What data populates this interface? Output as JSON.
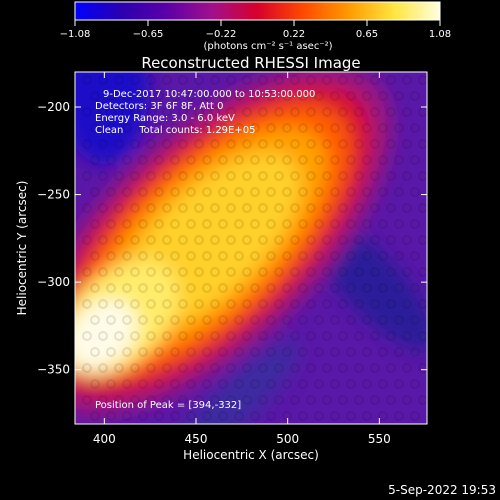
{
  "colorbar": {
    "ticks": [
      "−1.08",
      "−0.65",
      "−0.22",
      "0.22",
      "0.65",
      "1.08"
    ],
    "units_label": "(photons cm⁻² s⁻¹ asec⁻²)",
    "range": [
      -1.08,
      1.08
    ],
    "colors": [
      "#0000ff",
      "#2a00b0",
      "#5a00a8",
      "#a0108c",
      "#d8002c",
      "#ff4a00",
      "#ff9a00",
      "#ffe640",
      "#ffffe0"
    ]
  },
  "chart_data": {
    "type": "heatmap",
    "title": "Reconstructed RHESSI Image",
    "xlabel": "Heliocentric X (arcsec)",
    "ylabel": "Heliocentric Y (arcsec)",
    "xlim": [
      384,
      576
    ],
    "ylim": [
      -381,
      -180
    ],
    "x_ticks": [
      {
        "value": 400,
        "label": "400"
      },
      {
        "value": 450,
        "label": "450"
      },
      {
        "value": 500,
        "label": "500"
      },
      {
        "value": 550,
        "label": "550"
      }
    ],
    "y_ticks": [
      {
        "value": -200,
        "label": "−200"
      },
      {
        "value": -250,
        "label": "−250"
      },
      {
        "value": -300,
        "label": "−300"
      },
      {
        "value": -350,
        "label": "−350"
      }
    ],
    "annotations": [
      "9-Dec-2017 10:47:00.000 to 10:53:00.000",
      "Detectors: 3F 6F 8F, Att 0",
      "Energy Range: 3.0 - 6.0 keV",
      "Clean     Total counts: 1.29E+05"
    ],
    "peak_label": "Position of Peak = [394,-332]",
    "peak": [
      394,
      -332
    ],
    "ridge": [
      [
        396,
        -338
      ],
      [
        440,
        -292
      ],
      [
        490,
        -243
      ],
      [
        530,
        -205
      ]
    ]
  },
  "footer": {
    "timestamp": "5-Sep-2022 19:53"
  }
}
